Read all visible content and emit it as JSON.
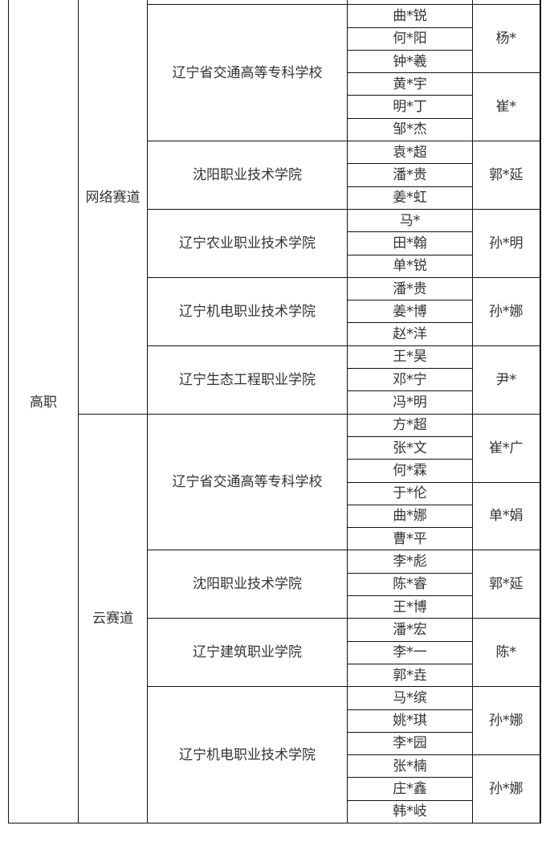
{
  "level": "高职",
  "tracks": [
    {
      "name": "网络赛道",
      "schools": [
        {
          "name": "辽宁省交通高等专科学校",
          "teams": [
            {
              "coach": "杨*",
              "members": [
                "曲*锐",
                "何*阳",
                "钟*羲"
              ]
            },
            {
              "coach": "崔*",
              "members": [
                "黄*宇",
                "明*丁",
                "邹*杰"
              ]
            }
          ]
        },
        {
          "name": "沈阳职业技术学院",
          "teams": [
            {
              "coach": "郭*延",
              "members": [
                "袁*超",
                "潘*贵",
                "姜*虹"
              ]
            }
          ]
        },
        {
          "name": "辽宁农业职业技术学院",
          "teams": [
            {
              "coach": "孙*明",
              "members": [
                "马*",
                "田*翰",
                "单*锐"
              ]
            }
          ]
        },
        {
          "name": "辽宁机电职业技术学院",
          "teams": [
            {
              "coach": "孙*娜",
              "members": [
                "潘*贵",
                "姜*博",
                "赵*洋"
              ]
            }
          ]
        },
        {
          "name": "辽宁生态工程职业学院",
          "teams": [
            {
              "coach": "尹*",
              "members": [
                "王*昊",
                "邓*宁",
                "冯*明"
              ]
            }
          ]
        }
      ]
    },
    {
      "name": "云赛道",
      "schools": [
        {
          "name": "辽宁省交通高等专科学校",
          "teams": [
            {
              "coach": "崔*广",
              "members": [
                "方*超",
                "张*文",
                "何*霖"
              ]
            },
            {
              "coach": "单*娟",
              "members": [
                "于*伦",
                "曲*娜",
                "曹*平"
              ]
            }
          ]
        },
        {
          "name": "沈阳职业技术学院",
          "teams": [
            {
              "coach": "郭*延",
              "members": [
                "李*彪",
                "陈*睿",
                "王*博"
              ]
            }
          ]
        },
        {
          "name": "辽宁建筑职业学院",
          "teams": [
            {
              "coach": "陈*",
              "members": [
                "潘*宏",
                "李*一",
                "郭*垚"
              ]
            }
          ]
        },
        {
          "name": "辽宁机电职业技术学院",
          "teams": [
            {
              "coach": "孙*娜",
              "members": [
                "马*缤",
                "姚*琪",
                "李*园"
              ]
            },
            {
              "coach": "孙*娜",
              "members": [
                "张*楠",
                "庄*鑫",
                "韩*岐"
              ]
            }
          ]
        }
      ]
    }
  ]
}
